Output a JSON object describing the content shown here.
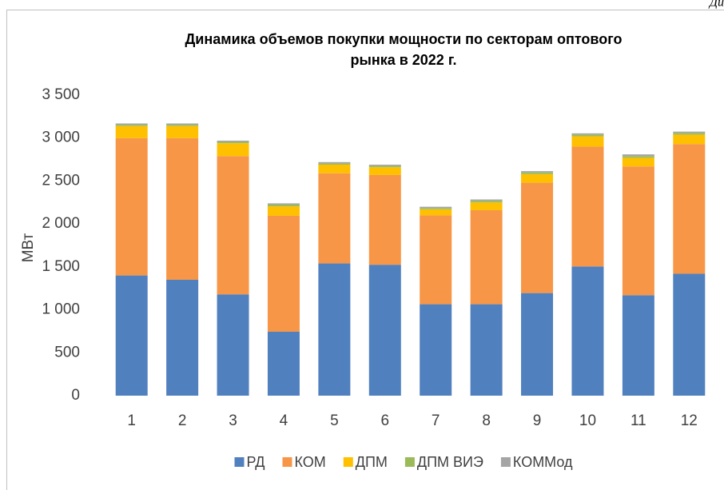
{
  "page_note": "Ди",
  "chart_data": {
    "type": "stacked_bar",
    "title": [
      "Динамика объемов покупки мощности по секторам оптового",
      "рынка в 2022 г."
    ],
    "y_label": "МВт",
    "categories": [
      "1",
      "2",
      "3",
      "4",
      "5",
      "6",
      "7",
      "8",
      "9",
      "10",
      "11",
      "12"
    ],
    "series": [
      {
        "name": "РД",
        "color": "#5180bf",
        "values": [
          1400,
          1350,
          1180,
          745,
          1540,
          1525,
          1065,
          1065,
          1195,
          1505,
          1170,
          1420
        ]
      },
      {
        "name": "КОМ",
        "color": "#f79646",
        "values": [
          1600,
          1650,
          1610,
          1350,
          1050,
          1045,
          1035,
          1095,
          1285,
          1395,
          1500,
          1510
        ]
      },
      {
        "name": "ДПМ",
        "color": "#ffc000",
        "values": [
          140,
          140,
          150,
          110,
          100,
          90,
          70,
          90,
          100,
          120,
          100,
          110
        ]
      },
      {
        "name": "ДПМ ВИЭ",
        "color": "#9bbb59",
        "values": [
          15,
          15,
          15,
          20,
          15,
          15,
          15,
          20,
          20,
          20,
          20,
          20
        ]
      },
      {
        "name": "КОММод",
        "color": "#a5a5a5",
        "values": [
          15,
          15,
          15,
          15,
          15,
          15,
          15,
          15,
          15,
          15,
          20,
          15
        ]
      }
    ],
    "ylim": [
      0,
      3500
    ],
    "yticks": [
      0,
      500,
      {
        "value": 1000,
        "label": "1 000"
      },
      {
        "value": 1500,
        "label": "1 500"
      },
      {
        "value": 2000,
        "label": "2 000"
      },
      {
        "value": 2500,
        "label": "2 500"
      },
      {
        "value": 3000,
        "label": "3 000"
      },
      {
        "value": 3500,
        "label": "3 500"
      }
    ],
    "grid": false,
    "legend": "bottom"
  }
}
